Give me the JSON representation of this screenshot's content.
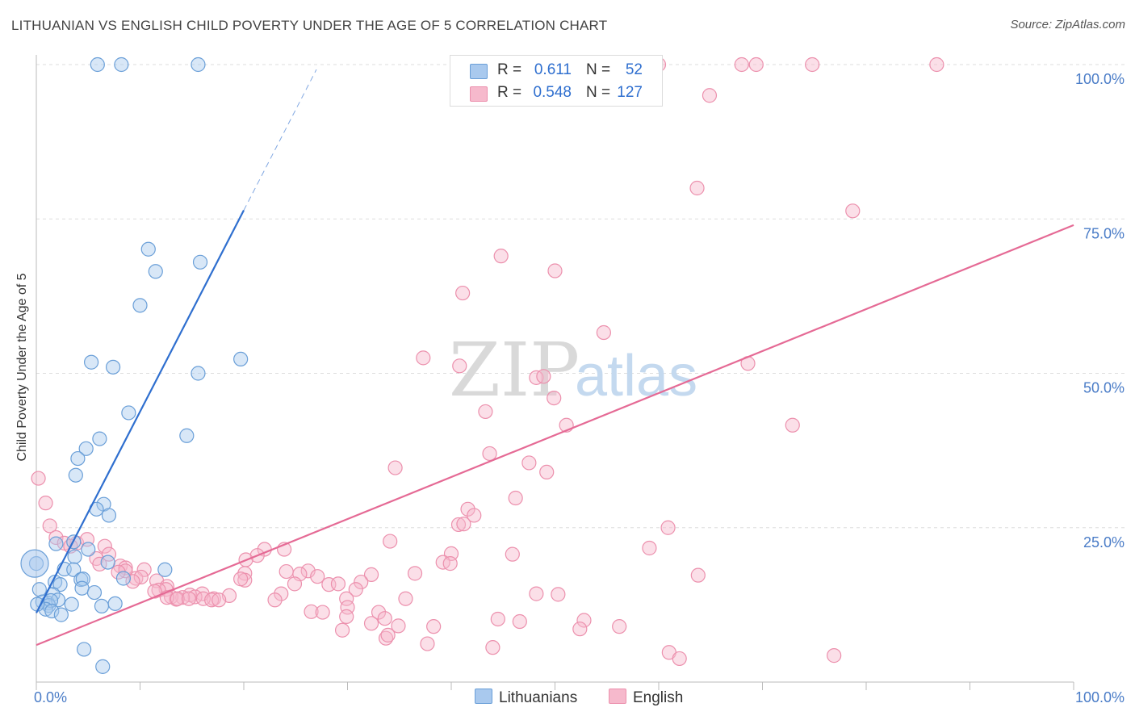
{
  "title": "LITHUANIAN VS ENGLISH CHILD POVERTY UNDER THE AGE OF 5 CORRELATION CHART",
  "source": "Source: ZipAtlas.com",
  "watermark": {
    "zip": "ZIP",
    "atlas": "atlas"
  },
  "legend": {
    "lith": {
      "r_label": "R =",
      "r_value": "0.611",
      "n_label": "N =",
      "n_value": "52"
    },
    "eng": {
      "r_label": "R =",
      "r_value": "0.548",
      "n_label": "N =",
      "n_value": "127"
    }
  },
  "bottom_legend": {
    "lith": "Lithuanians",
    "eng": "English"
  },
  "colors": {
    "lith_fill": "#a9c9ee",
    "lith_stroke": "#6a9fd8",
    "lith_line": "#2f6fcf",
    "eng_fill": "#f6b9cc",
    "eng_stroke": "#ec90ad",
    "eng_line": "#e56a95",
    "tick_label": "#4a7cc7",
    "grid": "#dddddd"
  },
  "chart_data": {
    "type": "scatter",
    "title": "LITHUANIAN VS ENGLISH CHILD POVERTY UNDER THE AGE OF 5 CORRELATION CHART",
    "xlabel": "",
    "ylabel": "Child Poverty Under the Age of 5",
    "xlim": [
      0,
      100
    ],
    "ylim": [
      0,
      100
    ],
    "x_tick_labels": [
      "0.0%",
      "100.0%"
    ],
    "y_ticks": [
      25,
      50,
      75,
      100
    ],
    "y_tick_labels": [
      "25.0%",
      "50.0%",
      "75.0%",
      "100.0%"
    ],
    "grid": true,
    "legend_position": "top-center",
    "series": [
      {
        "name": "Lithuanians",
        "R": 0.611,
        "N": 52,
        "trend": {
          "x0": 0,
          "y0": 11.2,
          "x1": 20,
          "y1": 76.4,
          "dashed_to_x": 27,
          "dashed_to_y": 99.2
        },
        "points": [
          [
            5.9,
            100
          ],
          [
            8.2,
            100
          ],
          [
            15.6,
            100
          ],
          [
            10.8,
            70.1
          ],
          [
            15.8,
            68
          ],
          [
            11.5,
            66.5
          ],
          [
            10.0,
            61
          ],
          [
            5.3,
            51.8
          ],
          [
            7.4,
            51
          ],
          [
            15.6,
            50
          ],
          [
            19.7,
            52.3
          ],
          [
            8.9,
            43.6
          ],
          [
            14.5,
            39.9
          ],
          [
            6.1,
            39.4
          ],
          [
            4.8,
            37.8
          ],
          [
            4,
            36.2
          ],
          [
            3.8,
            33.5
          ],
          [
            6.5,
            28.8
          ],
          [
            5.8,
            28
          ],
          [
            7,
            27
          ],
          [
            0,
            19.2
          ],
          [
            3.6,
            22.7
          ],
          [
            1.9,
            22.4
          ],
          [
            5,
            21.5
          ],
          [
            3.7,
            20.3
          ],
          [
            6.9,
            19.4
          ],
          [
            12.4,
            18.2
          ],
          [
            2.7,
            18.3
          ],
          [
            3.6,
            18.2
          ],
          [
            1.8,
            16.2
          ],
          [
            4.3,
            16.6
          ],
          [
            8.4,
            16.8
          ],
          [
            2.3,
            15.8
          ],
          [
            4.5,
            16.7
          ],
          [
            0.3,
            15
          ],
          [
            4.4,
            15.2
          ],
          [
            5.6,
            14.5
          ],
          [
            1.6,
            14.2
          ],
          [
            0.6,
            13
          ],
          [
            1.1,
            12.8
          ],
          [
            2.1,
            13.3
          ],
          [
            3.4,
            12.6
          ],
          [
            1.2,
            12.4
          ],
          [
            1.4,
            13.2
          ],
          [
            6.3,
            12.3
          ],
          [
            7.6,
            12.7
          ],
          [
            0.9,
            11.8
          ],
          [
            1.5,
            11.5
          ],
          [
            2.4,
            10.9
          ],
          [
            4.6,
            5.3
          ],
          [
            6.4,
            2.5
          ],
          [
            0.1,
            12.6
          ]
        ]
      },
      {
        "name": "English",
        "R": 0.548,
        "N": 127,
        "trend": {
          "x0": 0,
          "y0": 6.0,
          "x1": 100,
          "y1": 74.0
        },
        "points": [
          [
            51.3,
            100
          ],
          [
            59.2,
            100
          ],
          [
            60,
            100
          ],
          [
            68,
            100
          ],
          [
            69.4,
            100
          ],
          [
            74.8,
            100
          ],
          [
            86.8,
            100
          ],
          [
            64.9,
            95
          ],
          [
            63.7,
            80
          ],
          [
            78.7,
            76.3
          ],
          [
            44.8,
            69
          ],
          [
            50,
            66.6
          ],
          [
            41.1,
            63
          ],
          [
            54.7,
            56.6
          ],
          [
            37.3,
            52.5
          ],
          [
            40.8,
            51.2
          ],
          [
            48.2,
            49.3
          ],
          [
            48.9,
            49.5
          ],
          [
            49.9,
            46
          ],
          [
            68.6,
            51.6
          ],
          [
            43.3,
            43.8
          ],
          [
            51.1,
            41.6
          ],
          [
            72.9,
            41.6
          ],
          [
            43.7,
            37
          ],
          [
            47.5,
            35.5
          ],
          [
            34.6,
            34.7
          ],
          [
            49.2,
            34
          ],
          [
            0.2,
            33
          ],
          [
            0.9,
            29
          ],
          [
            46.2,
            29.8
          ],
          [
            41.6,
            28
          ],
          [
            42.2,
            27
          ],
          [
            40.7,
            25.5
          ],
          [
            41.2,
            25.6
          ],
          [
            60.9,
            25
          ],
          [
            1.3,
            25.3
          ],
          [
            1.9,
            23.4
          ],
          [
            3.9,
            22.5
          ],
          [
            4.9,
            23.1
          ],
          [
            2.7,
            22.5
          ],
          [
            3.3,
            22
          ],
          [
            6.6,
            22
          ],
          [
            34.1,
            22.8
          ],
          [
            59.1,
            21.7
          ],
          [
            22,
            21.5
          ],
          [
            23.9,
            21.5
          ],
          [
            7,
            20.7
          ],
          [
            21.3,
            20.5
          ],
          [
            40,
            20.8
          ],
          [
            5.8,
            20
          ],
          [
            45.9,
            20.7
          ],
          [
            20.2,
            19.8
          ],
          [
            6.1,
            19.1
          ],
          [
            39.2,
            19.4
          ],
          [
            39.9,
            19.2
          ],
          [
            8.1,
            18.8
          ],
          [
            8.6,
            18.5
          ],
          [
            10.4,
            18.2
          ],
          [
            8.6,
            18
          ],
          [
            24.1,
            17.9
          ],
          [
            26.2,
            18
          ],
          [
            25.4,
            17.5
          ],
          [
            32.3,
            17.4
          ],
          [
            36.5,
            17.6
          ],
          [
            63.8,
            17.3
          ],
          [
            7.9,
            17.8
          ],
          [
            20.1,
            17.6
          ],
          [
            9.6,
            16.8
          ],
          [
            20.1,
            16.5
          ],
          [
            27.1,
            17.1
          ],
          [
            10.1,
            17
          ],
          [
            11.6,
            16.4
          ],
          [
            19.7,
            16.7
          ],
          [
            24.9,
            15.9
          ],
          [
            28.2,
            15.8
          ],
          [
            9.3,
            16.3
          ],
          [
            12.6,
            15.5
          ],
          [
            12.5,
            15
          ],
          [
            11.8,
            14.9
          ],
          [
            29.1,
            15.9
          ],
          [
            31.3,
            16.2
          ],
          [
            30.8,
            15
          ],
          [
            11.4,
            14.7
          ],
          [
            23.6,
            14.3
          ],
          [
            16,
            14.3
          ],
          [
            50.3,
            14.2
          ],
          [
            48.2,
            14.3
          ],
          [
            14.8,
            14.1
          ],
          [
            15.3,
            13.8
          ],
          [
            14.1,
            13.7
          ],
          [
            13,
            13.8
          ],
          [
            17.1,
            13.5
          ],
          [
            18.6,
            14
          ],
          [
            13.5,
            13.4
          ],
          [
            23,
            13.3
          ],
          [
            29.9,
            13.5
          ],
          [
            16.1,
            13.5
          ],
          [
            12.6,
            13.7
          ],
          [
            35.6,
            13.5
          ],
          [
            16.9,
            13.3
          ],
          [
            17.6,
            13.3
          ],
          [
            13.6,
            13.5
          ],
          [
            14.7,
            13.5
          ],
          [
            30,
            12.1
          ],
          [
            26.5,
            11.4
          ],
          [
            33,
            11.3
          ],
          [
            27.6,
            11.3
          ],
          [
            33.6,
            10.3
          ],
          [
            29.9,
            10.6
          ],
          [
            44.5,
            10.2
          ],
          [
            52.8,
            10
          ],
          [
            46.6,
            9.8
          ],
          [
            56.2,
            9
          ],
          [
            34.9,
            9.1
          ],
          [
            52.4,
            8.6
          ],
          [
            32.3,
            9.5
          ],
          [
            38.3,
            9
          ],
          [
            29.5,
            8.4
          ],
          [
            33.7,
            7.1
          ],
          [
            33.9,
            7.6
          ],
          [
            37.7,
            6.2
          ],
          [
            44,
            5.6
          ],
          [
            61,
            4.8
          ],
          [
            62,
            3.8
          ],
          [
            76.9,
            4.3
          ]
        ]
      }
    ]
  }
}
